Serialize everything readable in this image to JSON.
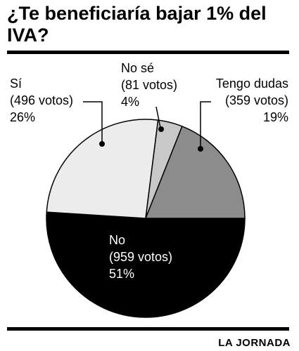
{
  "chart_data": {
    "type": "pie",
    "title": "¿Te beneficiaría bajar 1% del IVA?",
    "categories": [
      "No",
      "Sí",
      "No sé",
      "Tengo dudas"
    ],
    "vote_labels": [
      "(959 votos)",
      "(496 votos)",
      "(81 votos)",
      "(359 votos)"
    ],
    "values": [
      51,
      26,
      4,
      19
    ],
    "value_labels": [
      "51%",
      "26%",
      "4%",
      "19%"
    ],
    "colors": [
      "#000000",
      "#ececec",
      "#c8c8c8",
      "#8c8c8c"
    ],
    "source": "LA JORNADA"
  }
}
